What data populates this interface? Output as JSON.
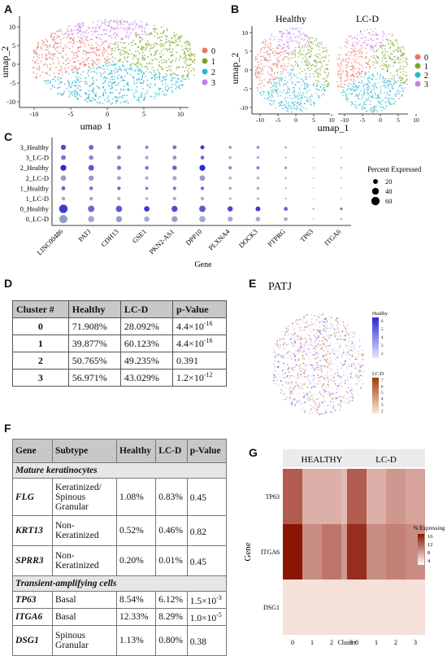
{
  "panels": {
    "A": {
      "label": "A",
      "xlabel": "umap_1",
      "ylabel": "umap_2",
      "xticks": [
        "-10",
        "-5",
        "0",
        "5",
        "10"
      ],
      "yticks": [
        "10",
        "5",
        "0",
        "-5",
        "-10"
      ],
      "legend": [
        "0",
        "1",
        "2",
        "3"
      ]
    },
    "B": {
      "label": "B",
      "titles": [
        "Healthy",
        "LC-D"
      ],
      "xlabel": "umap_1",
      "ylabel": "umap_2",
      "xticks": [
        "-10",
        "-5",
        "0",
        "5",
        "10"
      ],
      "yticks": [
        "10",
        "5",
        "0",
        "-5",
        "-10"
      ],
      "legend": [
        "0",
        "1",
        "2",
        "3"
      ]
    },
    "C": {
      "label": "C"
    },
    "D": {
      "label": "D"
    },
    "E": {
      "label": "E",
      "title": "PATJ",
      "legend_healthy": {
        "title": "Healthy",
        "ticks": [
          "6",
          "5",
          "4",
          "3",
          "2"
        ]
      },
      "legend_lcd": {
        "title": "LC-D",
        "ticks": [
          "7",
          "6",
          "5",
          "4",
          "3",
          "2"
        ]
      }
    },
    "F": {
      "label": "F"
    },
    "G": {
      "label": "G"
    }
  },
  "colors": {
    "c0": "#e8776a",
    "c1": "#7aa729",
    "c2": "#2bb6cf",
    "c3": "#c77ce6",
    "dot_low": "#c8c8c8",
    "dot_high": "#2a2ad6",
    "heat_high": "#8b1505",
    "heat_low": "#fbece6"
  },
  "chart_data": [
    {
      "type": "scatter",
      "panel": "C",
      "title": "",
      "xlabel": "Gene",
      "ylabel": "",
      "genes": [
        "LINC00486",
        "PATJ",
        "CDH13",
        "GSE1",
        "PKN2-AS1",
        "DPP10",
        "PLXNA4",
        "DOCK3",
        "PTPRG",
        "TP63",
        "ITGA6"
      ],
      "groups": [
        "3_Healthy",
        "3_LC-D",
        "2_Healthy",
        "2_LC-D",
        "1_Healthy",
        "1_LC-D",
        "0_Healthy",
        "0_LC-D"
      ],
      "legend_title": "Percent Expressed",
      "legend_values": [
        "20",
        "40",
        "60"
      ],
      "pct": [
        [
          22,
          20,
          14,
          10,
          14,
          14,
          8,
          8,
          4,
          2,
          2
        ],
        [
          20,
          18,
          14,
          10,
          14,
          12,
          6,
          6,
          3,
          2,
          2
        ],
        [
          30,
          28,
          16,
          12,
          18,
          30,
          10,
          10,
          6,
          2,
          3
        ],
        [
          26,
          24,
          14,
          10,
          16,
          26,
          8,
          8,
          4,
          2,
          2
        ],
        [
          14,
          12,
          10,
          8,
          10,
          10,
          6,
          6,
          3,
          2,
          2
        ],
        [
          12,
          12,
          10,
          8,
          10,
          10,
          6,
          6,
          3,
          2,
          2
        ],
        [
          62,
          36,
          34,
          26,
          32,
          36,
          24,
          20,
          14,
          3,
          6
        ],
        [
          58,
          34,
          32,
          24,
          30,
          34,
          22,
          18,
          12,
          2,
          4
        ]
      ],
      "avg": [
        [
          0.8,
          0.6,
          0.5,
          0.4,
          0.5,
          0.9,
          0.3,
          0.3,
          0.2,
          0.1,
          0.1
        ],
        [
          0.5,
          0.4,
          0.3,
          0.2,
          0.3,
          0.6,
          0.2,
          0.2,
          0.1,
          0.1,
          0.1
        ],
        [
          1.0,
          0.7,
          0.5,
          0.5,
          0.6,
          1.0,
          0.4,
          0.4,
          0.3,
          0.1,
          0.1
        ],
        [
          0.3,
          0.3,
          0.2,
          0.2,
          0.2,
          0.3,
          0.1,
          0.1,
          0.1,
          0.1,
          0.1
        ],
        [
          0.6,
          0.5,
          0.6,
          0.5,
          0.5,
          0.6,
          0.3,
          0.3,
          0.2,
          0.1,
          0.1
        ],
        [
          0.2,
          0.2,
          0.2,
          0.1,
          0.2,
          0.2,
          0.1,
          0.1,
          0.1,
          0.1,
          0.1
        ],
        [
          0.9,
          0.6,
          0.7,
          0.9,
          0.8,
          0.7,
          0.8,
          0.9,
          0.6,
          0.2,
          0.5
        ],
        [
          0.3,
          0.2,
          0.3,
          0.2,
          0.3,
          0.2,
          0.2,
          0.2,
          0.2,
          0.1,
          0.1
        ]
      ]
    },
    {
      "type": "heatmap",
      "panel": "G",
      "title": "",
      "xlabel": "Cluster",
      "ylabel": "Gene",
      "facets": [
        "HEALTHY",
        "LC-D"
      ],
      "clusters": [
        "0",
        "1",
        "2",
        "3"
      ],
      "genes": [
        "TP63",
        "ITGA6",
        "DSG1"
      ],
      "legend_title": "% Expressing",
      "legend_ticks": [
        "16",
        "12",
        "8",
        "4"
      ],
      "values": {
        "HEALTHY": [
          [
            12,
            5,
            5,
            4
          ],
          [
            18,
            8,
            10,
            7
          ],
          [
            1,
            1,
            1,
            1
          ]
        ],
        "LC-D": [
          [
            12,
            5,
            7,
            6
          ],
          [
            16,
            8,
            9,
            8
          ],
          [
            1,
            1,
            1,
            1
          ]
        ]
      }
    }
  ],
  "tableD": {
    "headers": [
      "Cluster #",
      "Healthy",
      "LC-D",
      "p-Value"
    ],
    "rows": [
      {
        "c": "0",
        "h": "71.908%",
        "l": "28.092%",
        "p": "4.4×10",
        "pe": "-16"
      },
      {
        "c": "1",
        "h": "39.877%",
        "l": "60.123%",
        "p": "4.4×10",
        "pe": "-16"
      },
      {
        "c": "2",
        "h": "50.765%",
        "l": "49.235%",
        "p": "0.391",
        "pe": ""
      },
      {
        "c": "3",
        "h": "56.971%",
        "l": "43.029%",
        "p": "1.2×10",
        "pe": "-12"
      }
    ]
  },
  "tableF": {
    "headers": [
      "Gene",
      "Subtype",
      "Healthy",
      "LC-D",
      "p-Value"
    ],
    "sections": [
      {
        "title": "Mature keratinocytes",
        "rows": [
          {
            "g": "FLG",
            "s": "Keratinized/ Spinous Granular",
            "h": "1.08%",
            "l": "0.83%",
            "p": "0.45",
            "pe": ""
          },
          {
            "g": "KRT13",
            "s": "Non-Keratinized",
            "h": "0.52%",
            "l": "0.46%",
            "p": "0.82",
            "pe": ""
          },
          {
            "g": "SPRR3",
            "s": "Non-Keratinized",
            "h": "0.20%",
            "l": "0.01%",
            "p": "0.45",
            "pe": ""
          }
        ]
      },
      {
        "title": "Transient-amplifying cells",
        "rows": [
          {
            "g": "TP63",
            "s": "Basal",
            "h": "8.54%",
            "l": "6.12%",
            "p": "1.5×10",
            "pe": "-3"
          },
          {
            "g": "ITGA6",
            "s": "Basal",
            "h": "12.33%",
            "l": "8.29%",
            "p": "1.0×10",
            "pe": "-5"
          },
          {
            "g": "DSG1",
            "s": "Spinous Granular",
            "h": "1.13%",
            "l": "0.80%",
            "p": "0.38",
            "pe": ""
          }
        ]
      }
    ]
  }
}
